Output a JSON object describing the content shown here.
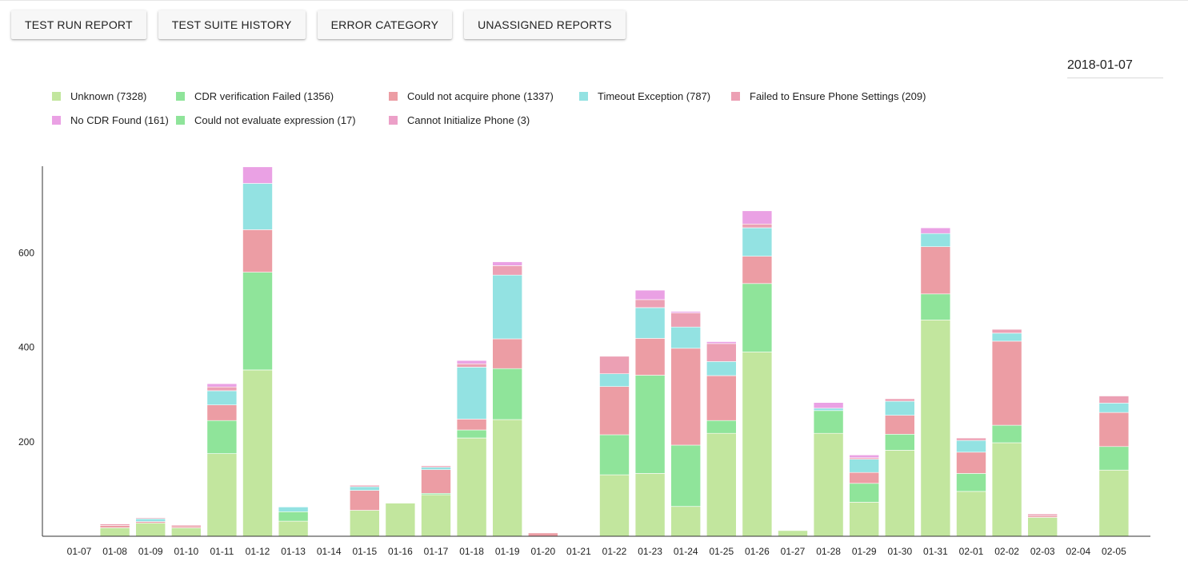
{
  "tabs": [
    {
      "label": "TEST RUN REPORT"
    },
    {
      "label": "TEST SUITE HISTORY"
    },
    {
      "label": "ERROR CATEGORY"
    },
    {
      "label": "UNASSIGNED REPORTS"
    }
  ],
  "date_picker": {
    "value": "2018-01-07"
  },
  "chart_data": {
    "type": "bar",
    "stacked": true,
    "title": "",
    "xlabel": "",
    "ylabel": "",
    "ylim": [
      0,
      780
    ],
    "yticks": [
      200,
      400,
      600
    ],
    "grid": false,
    "legend_position": "top-left",
    "categories": [
      "01-07",
      "01-08",
      "01-09",
      "01-10",
      "01-11",
      "01-12",
      "01-13",
      "01-14",
      "01-15",
      "01-16",
      "01-17",
      "01-18",
      "01-19",
      "01-20",
      "01-21",
      "01-22",
      "01-23",
      "01-24",
      "01-25",
      "01-26",
      "01-27",
      "01-28",
      "01-29",
      "01-30",
      "01-31",
      "02-01",
      "02-02",
      "02-03",
      "02-04",
      "02-05"
    ],
    "series": [
      {
        "name": "Unknown (7328)",
        "color": "#c2e69e",
        "values": [
          0,
          18,
          28,
          18,
          175,
          352,
          32,
          0,
          55,
          70,
          88,
          208,
          247,
          0,
          0,
          130,
          133,
          63,
          218,
          390,
          12,
          218,
          72,
          182,
          458,
          95,
          198,
          40,
          0,
          140
        ]
      },
      {
        "name": "CDR verification Failed (1356)",
        "color": "#8fe49a",
        "values": [
          0,
          0,
          0,
          0,
          70,
          207,
          20,
          0,
          0,
          0,
          3,
          17,
          108,
          0,
          0,
          85,
          208,
          130,
          27,
          145,
          0,
          48,
          40,
          34,
          55,
          38,
          37,
          0,
          0,
          50
        ]
      },
      {
        "name": "Could not acquire phone (1337)",
        "color": "#ec9da4",
        "values": [
          0,
          5,
          3,
          4,
          33,
          90,
          0,
          0,
          42,
          0,
          50,
          23,
          63,
          7,
          0,
          102,
          78,
          205,
          95,
          58,
          0,
          0,
          23,
          40,
          100,
          45,
          178,
          3,
          0,
          72
        ]
      },
      {
        "name": "Timeout Exception (787)",
        "color": "#93e2e2",
        "values": [
          0,
          0,
          6,
          0,
          30,
          98,
          10,
          0,
          8,
          0,
          5,
          110,
          135,
          0,
          0,
          27,
          65,
          45,
          30,
          60,
          0,
          5,
          28,
          30,
          28,
          25,
          17,
          0,
          0,
          20
        ]
      },
      {
        "name": "Failed to Ensure Phone Settings (209)",
        "color": "#eca0b4",
        "values": [
          0,
          3,
          2,
          2,
          8,
          0,
          0,
          0,
          3,
          0,
          3,
          7,
          20,
          0,
          0,
          37,
          17,
          30,
          38,
          8,
          0,
          0,
          3,
          5,
          0,
          5,
          8,
          4,
          0,
          15
        ]
      },
      {
        "name": "No CDR Found (161)",
        "color": "#eaa1e4",
        "values": [
          0,
          0,
          0,
          0,
          7,
          35,
          0,
          0,
          0,
          0,
          0,
          7,
          8,
          0,
          0,
          0,
          20,
          3,
          4,
          28,
          0,
          12,
          6,
          0,
          12,
          0,
          0,
          0,
          0,
          0
        ]
      },
      {
        "name": "Could not evaluate expression (17)",
        "color": "#8fe49a",
        "values": [
          0,
          0,
          0,
          0,
          0,
          0,
          0,
          0,
          0,
          0,
          0,
          0,
          0,
          0,
          0,
          0,
          0,
          0,
          0,
          0,
          0,
          0,
          0,
          0,
          0,
          0,
          0,
          0,
          0,
          0
        ]
      },
      {
        "name": "Cannot Initialize Phone (3)",
        "color": "#eca0c8",
        "values": [
          0,
          0,
          0,
          0,
          0,
          0,
          0,
          0,
          0,
          0,
          0,
          0,
          0,
          0,
          0,
          0,
          0,
          0,
          0,
          0,
          0,
          0,
          0,
          0,
          0,
          0,
          0,
          0,
          0,
          0
        ]
      }
    ]
  }
}
